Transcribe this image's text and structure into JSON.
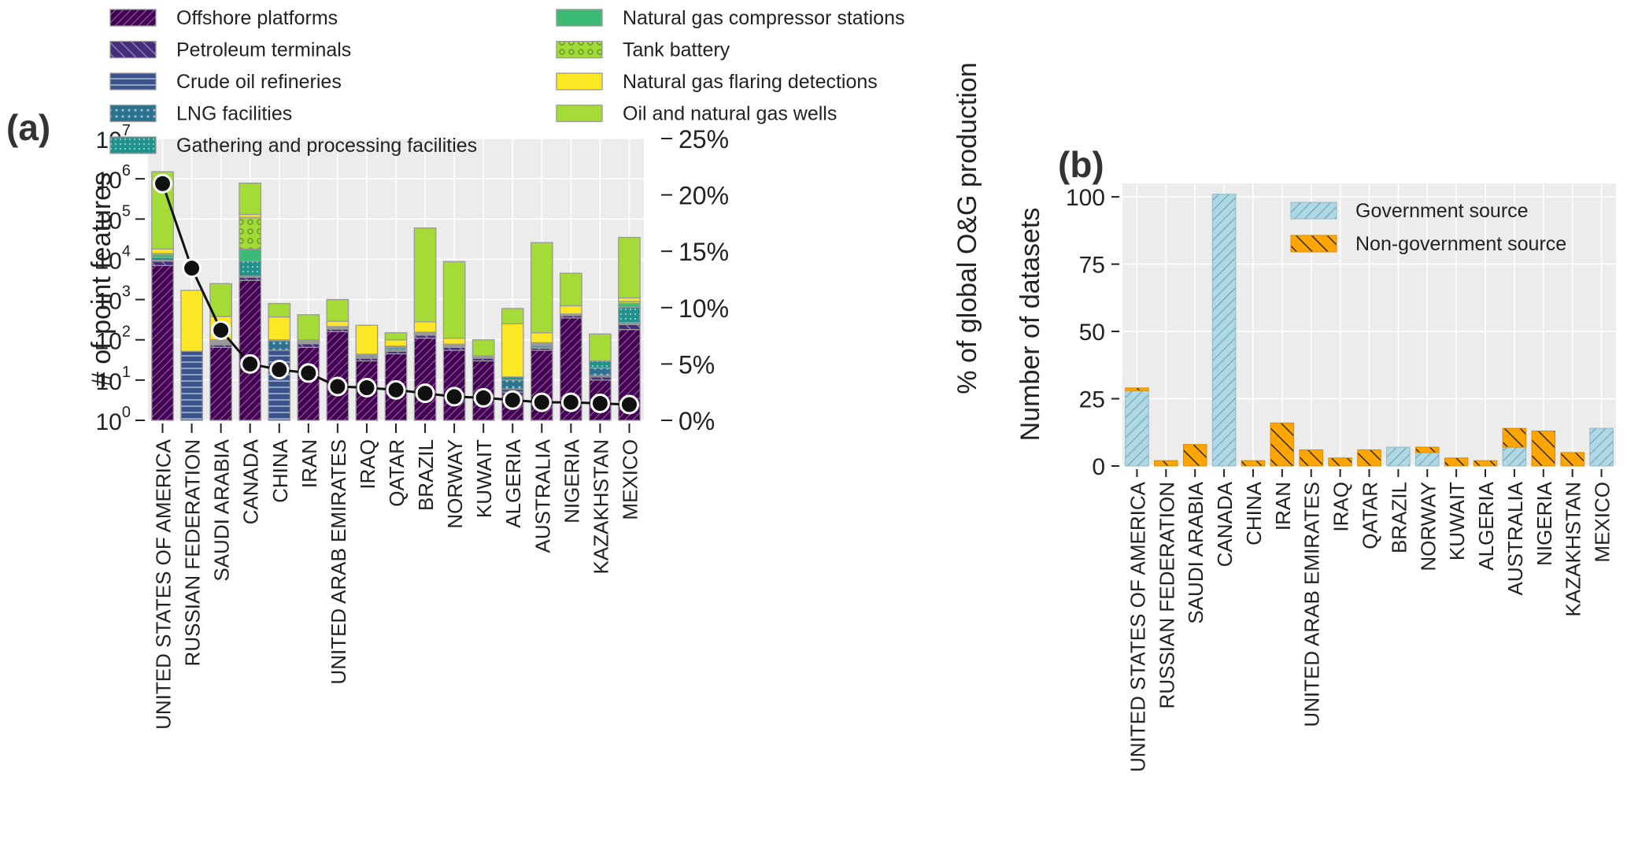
{
  "chart_data": [
    {
      "panel_label": "(a)",
      "type": "bar",
      "stacked": true,
      "yscale": "log",
      "ylabel": "# of point features",
      "ylim": [
        1,
        10000000
      ],
      "yticks": [
        {
          "value": 1,
          "base": "10",
          "exp": "0"
        },
        {
          "value": 10,
          "base": "10",
          "exp": "1"
        },
        {
          "value": 100,
          "base": "10",
          "exp": "2"
        },
        {
          "value": 1000,
          "base": "10",
          "exp": "3"
        },
        {
          "value": 10000,
          "base": "10",
          "exp": "4"
        },
        {
          "value": 100000,
          "base": "10",
          "exp": "5"
        },
        {
          "value": 1000000,
          "base": "10",
          "exp": "6"
        },
        {
          "value": 10000000,
          "base": "10",
          "exp": "7"
        }
      ],
      "y2label": "% of global O&G production",
      "y2lim": [
        0,
        25
      ],
      "y2ticks": [
        {
          "value": 0,
          "label": "0%"
        },
        {
          "value": 5,
          "label": "5%"
        },
        {
          "value": 10,
          "label": "10%"
        },
        {
          "value": 15,
          "label": "15%"
        },
        {
          "value": 20,
          "label": "20%"
        },
        {
          "value": 25,
          "label": "25%"
        }
      ],
      "categories": [
        "UNITED STATES OF AMERICA",
        "RUSSIAN FEDERATION",
        "SAUDI ARABIA",
        "CANADA",
        "CHINA",
        "IRAN",
        "UNITED ARAB EMIRATES",
        "IRAQ",
        "QATAR",
        "BRAZIL",
        "NORWAY",
        "KUWAIT",
        "ALGERIA",
        "AUSTRALIA",
        "NIGERIA",
        "KAZAKHSTAN",
        "MEXICO"
      ],
      "legend": [
        {
          "name": "Offshore platforms",
          "color": "#440154",
          "pattern": "diag-fine"
        },
        {
          "name": "Petroleum terminals",
          "color": "#472d7b",
          "pattern": "backdiag"
        },
        {
          "name": "Crude oil refineries",
          "color": "#3b528b",
          "pattern": "horizontal"
        },
        {
          "name": "LNG facilities",
          "color": "#2c728e",
          "pattern": "dots"
        },
        {
          "name": "Gathering and processing facilities",
          "color": "#21918c",
          "pattern": "dots-fine"
        },
        {
          "name": "Natural gas compressor stations",
          "color": "#3bbb75",
          "pattern": "none"
        },
        {
          "name": "Tank battery",
          "color": "#a2da37",
          "pattern": "circles"
        },
        {
          "name": "Natural gas flaring detections",
          "color": "#fde725",
          "pattern": "none"
        },
        {
          "name": "Oil and natural gas wells",
          "color": "#a5db36",
          "pattern": "none"
        }
      ],
      "series_cumulative": [
        {
          "name": "Offshore platforms",
          "values": [
            7000,
            0,
            65,
            3000,
            0,
            65,
            160,
            30,
            45,
            110,
            55,
            30,
            4,
            55,
            350,
            10,
            180
          ]
        },
        {
          "name": "Petroleum terminals",
          "values": [
            9000,
            0,
            75,
            3600,
            0,
            80,
            185,
            35,
            52,
            130,
            65,
            35,
            5,
            62,
            400,
            12,
            240
          ]
        },
        {
          "name": "Crude oil refineries",
          "values": [
            9200,
            52,
            80,
            3700,
            55,
            85,
            190,
            37,
            55,
            135,
            68,
            36,
            6,
            64,
            405,
            13,
            250
          ]
        },
        {
          "name": "LNG facilities",
          "values": [
            9500,
            52,
            85,
            3800,
            95,
            88,
            195,
            40,
            60,
            140,
            70,
            36,
            10,
            70,
            410,
            20,
            270
          ]
        },
        {
          "name": "Gathering and processing facilities",
          "values": [
            11000,
            52,
            90,
            9000,
            100,
            90,
            200,
            42,
            65,
            145,
            72,
            37,
            12,
            75,
            420,
            30,
            650
          ]
        },
        {
          "name": "Natural gas compressor stations",
          "values": [
            13000,
            52,
            95,
            18000,
            100,
            92,
            210,
            43,
            68,
            150,
            75,
            37,
            12,
            80,
            430,
            30,
            800
          ]
        },
        {
          "name": "Tank battery",
          "values": [
            14000,
            52,
            100,
            110000,
            100,
            95,
            215,
            44,
            70,
            155,
            78,
            38,
            12,
            85,
            440,
            30,
            900
          ]
        },
        {
          "name": "Natural gas flaring detections",
          "values": [
            18000,
            1700,
            380,
            130000,
            370,
            100,
            290,
            230,
            100,
            280,
            110,
            40,
            250,
            150,
            700,
            30,
            1100
          ]
        },
        {
          "name": "Oil and natural gas wells",
          "values": [
            1500000,
            1700,
            2500,
            780000,
            800,
            420,
            1000,
            230,
            150,
            60000,
            8800,
            100,
            600,
            26000,
            4500,
            140,
            35000
          ]
        }
      ],
      "line": {
        "name": "% of global O&G production",
        "values": [
          21,
          13.5,
          8,
          5,
          4.5,
          4.2,
          3,
          2.9,
          2.7,
          2.4,
          2.1,
          2.0,
          1.8,
          1.6,
          1.6,
          1.5,
          1.4
        ]
      }
    },
    {
      "panel_label": "(b)",
      "type": "bar",
      "stacked": true,
      "ylabel": "Number of datasets",
      "ylim": [
        0,
        105
      ],
      "yticks": [
        0,
        25,
        50,
        75,
        100
      ],
      "categories": [
        "UNITED STATES OF AMERICA",
        "RUSSIAN FEDERATION",
        "SAUDI ARABIA",
        "CANADA",
        "CHINA",
        "IRAN",
        "UNITED ARAB EMIRATES",
        "IRAQ",
        "QATAR",
        "BRAZIL",
        "NORWAY",
        "KUWAIT",
        "ALGERIA",
        "AUSTRALIA",
        "NIGERIA",
        "KAZAKHSTAN",
        "MEXICO"
      ],
      "series": [
        {
          "name": "Government source",
          "color": "#add8e6",
          "values": [
            28,
            0,
            0,
            101,
            0,
            0,
            0,
            0,
            0,
            7,
            5,
            0,
            0,
            7,
            0,
            0,
            14
          ]
        },
        {
          "name": "Non-government source",
          "color": "#ffa500",
          "values": [
            1,
            2,
            8,
            0,
            2,
            16,
            6,
            3,
            6,
            0,
            2,
            3,
            2,
            7,
            13,
            5,
            0
          ]
        }
      ],
      "legend": [
        {
          "name": "Government source"
        },
        {
          "name": "Non-government source"
        }
      ]
    }
  ]
}
